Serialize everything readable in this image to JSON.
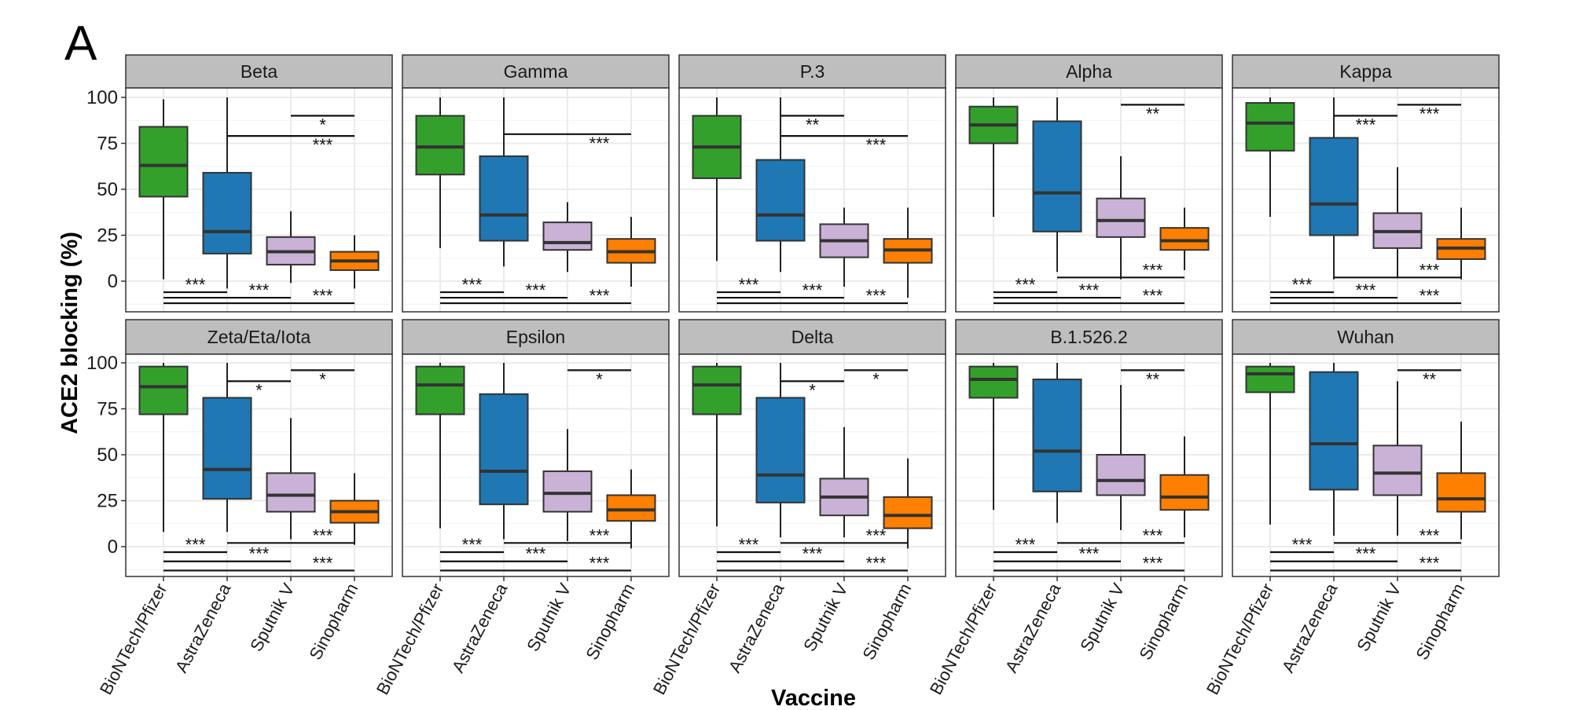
{
  "panel_letter": "A",
  "chart_data": {
    "type": "box",
    "ylabel": "ACE2 blocking (%)",
    "xlabel": "Vaccine",
    "ylim": [
      -16,
      105
    ],
    "yticks": [
      0,
      25,
      50,
      75,
      100
    ],
    "grid": true,
    "categories": [
      "BioNTech/Pfizer",
      "AstraZeneca",
      "Sputnik V",
      "Sinopharm"
    ],
    "colors": {
      "BioNTech/Pfizer": "#33a02c",
      "AstraZeneca": "#1f78b4",
      "Sputnik V": "#cab2d6",
      "Sinopharm": "#ff7f00"
    },
    "stats_order": [
      "whisker_low",
      "q1",
      "median",
      "q3",
      "whisker_high"
    ],
    "panels": [
      {
        "title": "Beta",
        "boxes": [
          [
            1,
            46,
            63,
            84,
            99
          ],
          [
            -4,
            15,
            27,
            59,
            100
          ],
          [
            -1,
            9,
            16,
            24,
            38
          ],
          [
            -4,
            6,
            11,
            16,
            25
          ]
        ],
        "brackets": [
          [
            2,
            3,
            90,
            "*"
          ],
          [
            1,
            3,
            79,
            "***"
          ],
          [
            0,
            1,
            -6,
            "***"
          ],
          [
            0,
            2,
            -9,
            "***"
          ],
          [
            0,
            3,
            -12,
            "***"
          ]
        ]
      },
      {
        "title": "Gamma",
        "boxes": [
          [
            18,
            58,
            73,
            90,
            100
          ],
          [
            8,
            22,
            36,
            68,
            100
          ],
          [
            5,
            17,
            21,
            32,
            43
          ],
          [
            -3,
            10,
            16,
            23,
            35
          ]
        ],
        "brackets": [
          [
            1,
            3,
            80,
            "***"
          ],
          [
            0,
            1,
            -6,
            "***"
          ],
          [
            0,
            2,
            -9,
            "***"
          ],
          [
            0,
            3,
            -12,
            "***"
          ]
        ]
      },
      {
        "title": "P.3",
        "boxes": [
          [
            11,
            56,
            73,
            90,
            100
          ],
          [
            5,
            22,
            36,
            66,
            100
          ],
          [
            -3,
            13,
            22,
            31,
            40
          ],
          [
            -9,
            10,
            17,
            23,
            40
          ]
        ],
        "brackets": [
          [
            1,
            2,
            90,
            "**"
          ],
          [
            1,
            3,
            79,
            "***"
          ],
          [
            0,
            1,
            -6,
            "***"
          ],
          [
            0,
            2,
            -9,
            "***"
          ],
          [
            0,
            3,
            -12,
            "***"
          ]
        ]
      },
      {
        "title": "Alpha",
        "boxes": [
          [
            35,
            75,
            85,
            95,
            100
          ],
          [
            5,
            27,
            48,
            87,
            100
          ],
          [
            1,
            24,
            33,
            45,
            68
          ],
          [
            6,
            17,
            22,
            29,
            40
          ]
        ],
        "brackets": [
          [
            2,
            3,
            96,
            "**"
          ],
          [
            1,
            3,
            2,
            "***"
          ],
          [
            0,
            1,
            -6,
            "***"
          ],
          [
            0,
            2,
            -9,
            "***"
          ],
          [
            0,
            3,
            -12,
            "***"
          ]
        ]
      },
      {
        "title": "Kappa",
        "boxes": [
          [
            35,
            71,
            86,
            97,
            100
          ],
          [
            1,
            25,
            42,
            78,
            100
          ],
          [
            2,
            18,
            27,
            37,
            62
          ],
          [
            1,
            12,
            18,
            23,
            40
          ]
        ],
        "brackets": [
          [
            1,
            2,
            90,
            "***"
          ],
          [
            2,
            3,
            96,
            "***"
          ],
          [
            1,
            3,
            2,
            "***"
          ],
          [
            0,
            1,
            -6,
            "***"
          ],
          [
            0,
            2,
            -9,
            "***"
          ],
          [
            0,
            3,
            -12,
            "***"
          ]
        ]
      },
      {
        "title": "Zeta/Eta/Iota",
        "boxes": [
          [
            8,
            72,
            87,
            98,
            100
          ],
          [
            8,
            26,
            42,
            81,
            100
          ],
          [
            4,
            19,
            28,
            40,
            70
          ],
          [
            1,
            13,
            19,
            25,
            40
          ]
        ],
        "brackets": [
          [
            1,
            2,
            90,
            "*"
          ],
          [
            2,
            3,
            96,
            "*"
          ],
          [
            1,
            3,
            2,
            "***"
          ],
          [
            0,
            1,
            -3,
            "***"
          ],
          [
            0,
            2,
            -8,
            "***"
          ],
          [
            0,
            3,
            -13,
            "***"
          ]
        ]
      },
      {
        "title": "Epsilon",
        "boxes": [
          [
            10,
            72,
            88,
            98,
            100
          ],
          [
            4,
            23,
            41,
            83,
            100
          ],
          [
            3,
            19,
            29,
            41,
            64
          ],
          [
            -1,
            14,
            20,
            28,
            42
          ]
        ],
        "brackets": [
          [
            2,
            3,
            96,
            "*"
          ],
          [
            1,
            3,
            2,
            "***"
          ],
          [
            0,
            1,
            -3,
            "***"
          ],
          [
            0,
            2,
            -8,
            "***"
          ],
          [
            0,
            3,
            -13,
            "***"
          ]
        ]
      },
      {
        "title": "Delta",
        "boxes": [
          [
            11,
            72,
            88,
            98,
            100
          ],
          [
            5,
            24,
            39,
            81,
            100
          ],
          [
            5,
            17,
            27,
            37,
            65
          ],
          [
            -1,
            10,
            17,
            27,
            48
          ]
        ],
        "brackets": [
          [
            1,
            2,
            90,
            "*"
          ],
          [
            2,
            3,
            96,
            "*"
          ],
          [
            1,
            3,
            2,
            "***"
          ],
          [
            0,
            1,
            -3,
            "***"
          ],
          [
            0,
            2,
            -8,
            "***"
          ],
          [
            0,
            3,
            -13,
            "***"
          ]
        ]
      },
      {
        "title": "B.1.526.2",
        "boxes": [
          [
            20,
            81,
            91,
            98,
            100
          ],
          [
            13,
            30,
            52,
            91,
            100
          ],
          [
            9,
            28,
            36,
            50,
            88
          ],
          [
            5,
            20,
            27,
            39,
            60
          ]
        ],
        "brackets": [
          [
            2,
            3,
            96,
            "**"
          ],
          [
            1,
            3,
            2,
            "***"
          ],
          [
            0,
            1,
            -3,
            "***"
          ],
          [
            0,
            2,
            -8,
            "***"
          ],
          [
            0,
            3,
            -13,
            "***"
          ]
        ]
      },
      {
        "title": "Wuhan",
        "boxes": [
          [
            12,
            84,
            94,
            98,
            100
          ],
          [
            6,
            31,
            56,
            95,
            100
          ],
          [
            6,
            28,
            40,
            55,
            90
          ],
          [
            4,
            19,
            26,
            40,
            68
          ]
        ],
        "brackets": [
          [
            2,
            3,
            96,
            "**"
          ],
          [
            1,
            3,
            2,
            "***"
          ],
          [
            0,
            1,
            -3,
            "***"
          ],
          [
            0,
            2,
            -8,
            "***"
          ],
          [
            0,
            3,
            -13,
            "***"
          ]
        ]
      }
    ]
  }
}
